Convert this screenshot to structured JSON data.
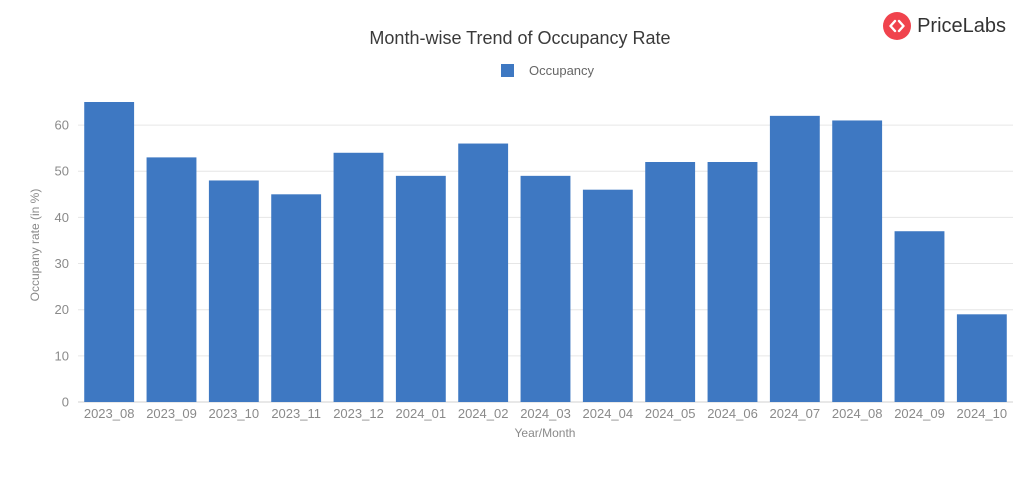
{
  "brand": {
    "name": "PriceLabs",
    "accent": "#f0434d"
  },
  "chart_data": {
    "type": "bar",
    "title": "Month-wise Trend of Occupancy Rate",
    "xlabel": "Year/Month",
    "ylabel": "Occupany rate (in %)",
    "ylim": [
      0,
      65
    ],
    "yticks": [
      0,
      10,
      20,
      30,
      40,
      50,
      60
    ],
    "grid": true,
    "legend": "top-center",
    "color": "#3e78c2",
    "categories": [
      "2023_08",
      "2023_09",
      "2023_10",
      "2023_11",
      "2023_12",
      "2024_01",
      "2024_02",
      "2024_03",
      "2024_04",
      "2024_05",
      "2024_06",
      "2024_07",
      "2024_08",
      "2024_09",
      "2024_10"
    ],
    "series": [
      {
        "name": "Occupancy",
        "values": [
          65,
          53,
          48,
          45,
          54,
          49,
          56,
          49,
          46,
          52,
          52,
          62,
          61,
          37,
          19
        ]
      }
    ]
  }
}
